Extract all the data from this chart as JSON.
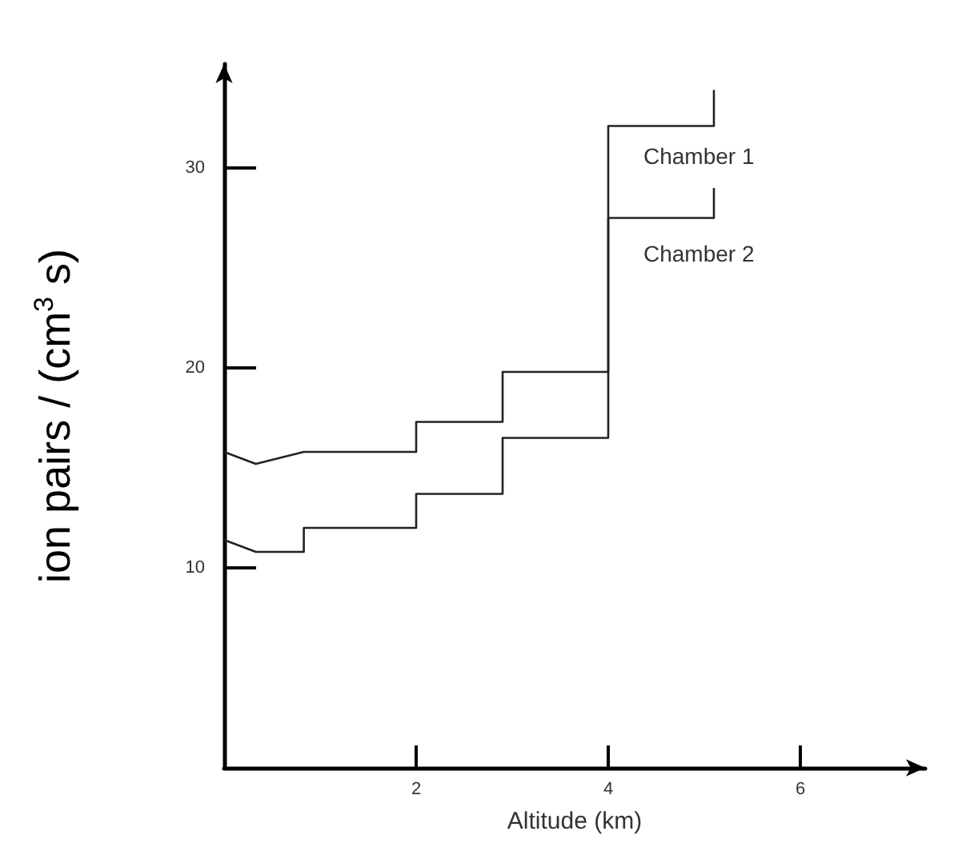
{
  "chart_data": {
    "type": "line",
    "xlabel": "Altitude (km)",
    "ylabel": "ion pairs / (cm$^{3}$ s)",
    "xlim": [
      0,
      7.3
    ],
    "xticks": [
      2,
      4,
      6
    ],
    "ylim": [
      0,
      35.2
    ],
    "yticks": [
      10,
      20,
      30
    ],
    "grid": false,
    "marker": "none",
    "line_style": "solid",
    "series": [
      {
        "name": "Chamber 1",
        "color": "#222222",
        "x": [
          0,
          0.33,
          0.83,
          2,
          2,
          2.9,
          2.9,
          4,
          4,
          5.1,
          5.1
        ],
        "values": [
          15.8,
          15.2,
          15.8,
          15.8,
          17.3,
          17.3,
          19.8,
          19.8,
          32.1,
          32.1,
          33.9
        ]
      },
      {
        "name": "Chamber 2",
        "color": "#222222",
        "x": [
          0,
          0.33,
          0.83,
          0.83,
          2,
          2,
          2.9,
          2.9,
          4,
          4,
          5.1,
          5.1
        ],
        "values": [
          11.4,
          10.8,
          10.8,
          12.0,
          12.0,
          13.7,
          13.7,
          16.5,
          16.5,
          27.5,
          27.5,
          29.0
        ]
      }
    ]
  }
}
